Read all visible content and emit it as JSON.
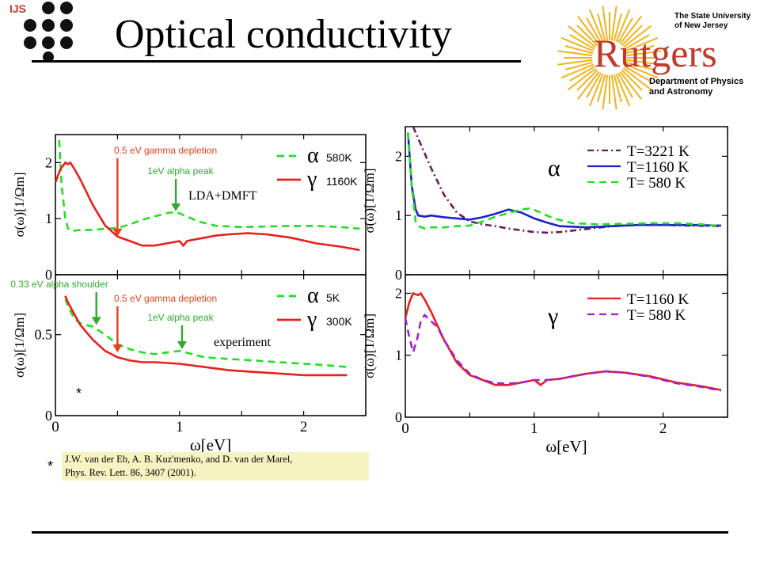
{
  "header": {
    "title": "Optical conductivity",
    "ijs_label": "IJS",
    "rutgers_state": "The State University of New Jersey",
    "rutgers_name": "Rutgers",
    "rutgers_dept": "Department of Physics and Astronomy"
  },
  "citation": {
    "line1": "J.W. van der Eb, A. B. Kuz'menko, and D. van der Marel,",
    "line2": "Phys. Rev. Lett. 86, 3407 (2001).",
    "marker": "*"
  },
  "colors": {
    "red": "#e8201c",
    "green": "#22dd22",
    "blue": "#1a22cc",
    "purple": "#6e1a5a",
    "violet": "#a020d0",
    "annotation": "#e8401c",
    "arrow_green": "#2faa2f"
  },
  "chart_data": [
    {
      "type": "line",
      "id": "left-top",
      "xlabel": "",
      "ylabel": "σ(ω)[1/Ωm]",
      "xlim": [
        0,
        2.5
      ],
      "ylim": [
        0,
        2.5
      ],
      "yticks": [
        "0",
        "1",
        "2"
      ],
      "inset_label": "LDA+DMFT",
      "legend": [
        {
          "symbol": "α",
          "text": "580K",
          "color": "green",
          "dash": true
        },
        {
          "symbol": "γ",
          "text": "1160K",
          "color": "red",
          "dash": false
        }
      ],
      "annotations": [
        {
          "text": "0.5 eV gamma depletion",
          "x": 0.5,
          "y": 0.68,
          "color": "annotation"
        },
        {
          "text": "1eV alpha peak",
          "x": 0.97,
          "y": 1.13,
          "color": "arrow_green"
        }
      ],
      "series": [
        {
          "color": "green",
          "dash": true,
          "x": [
            0.03,
            0.05,
            0.08,
            0.1,
            0.13,
            0.2,
            0.3,
            0.4,
            0.5,
            0.6,
            0.7,
            0.8,
            0.9,
            0.97,
            1.05,
            1.15,
            1.3,
            1.5,
            1.7,
            1.9,
            2.1,
            2.3,
            2.45
          ],
          "y": [
            2.4,
            1.6,
            1.0,
            0.83,
            0.78,
            0.8,
            0.8,
            0.82,
            0.83,
            0.9,
            0.98,
            1.04,
            1.1,
            1.12,
            1.05,
            0.95,
            0.87,
            0.85,
            0.86,
            0.87,
            0.87,
            0.85,
            0.82
          ]
        },
        {
          "color": "red",
          "dash": false,
          "x": [
            0.0,
            0.04,
            0.08,
            0.1,
            0.12,
            0.15,
            0.2,
            0.3,
            0.4,
            0.5,
            0.6,
            0.7,
            0.8,
            0.9,
            1.0,
            1.03,
            1.06,
            1.1,
            1.2,
            1.3,
            1.4,
            1.55,
            1.7,
            1.9,
            2.1,
            2.3,
            2.45
          ],
          "y": [
            1.65,
            1.88,
            2.0,
            1.97,
            2.0,
            1.9,
            1.7,
            1.25,
            0.88,
            0.68,
            0.6,
            0.52,
            0.52,
            0.56,
            0.6,
            0.52,
            0.6,
            0.62,
            0.66,
            0.7,
            0.72,
            0.74,
            0.72,
            0.66,
            0.56,
            0.5,
            0.44
          ]
        }
      ]
    },
    {
      "type": "line",
      "id": "left-bottom",
      "xlabel": "ω[eV]",
      "ylabel": "σ(ω)[1/Ωm]",
      "xlim": [
        0,
        2.5
      ],
      "ylim": [
        0,
        0.87
      ],
      "xticks": [
        "0",
        "1",
        "2"
      ],
      "yticks": [
        "0",
        "0.5"
      ],
      "inset_label": "experiment",
      "marker": "*",
      "legend": [
        {
          "symbol": "α",
          "text": "5K",
          "color": "green",
          "dash": true
        },
        {
          "symbol": "γ",
          "text": "300K",
          "color": "red",
          "dash": false
        }
      ],
      "annotations": [
        {
          "text": "0.33 eV alpha shoulder",
          "x": 0.33,
          "y": 0.56,
          "color": "arrow_green"
        },
        {
          "text": "0.5 eV gamma depletion",
          "x": 0.5,
          "y": 0.39,
          "color": "annotation"
        },
        {
          "text": "1eV alpha peak",
          "x": 1.02,
          "y": 0.41,
          "color": "arrow_green"
        }
      ],
      "series": [
        {
          "color": "green",
          "dash": true,
          "x": [
            0.08,
            0.1,
            0.15,
            0.2,
            0.3,
            0.4,
            0.5,
            0.6,
            0.7,
            0.8,
            0.9,
            1.0,
            1.1,
            1.2,
            1.4,
            1.6,
            1.8,
            2.0,
            2.2,
            2.35
          ],
          "y": [
            0.72,
            0.68,
            0.6,
            0.57,
            0.55,
            0.5,
            0.44,
            0.41,
            0.39,
            0.38,
            0.39,
            0.4,
            0.38,
            0.36,
            0.35,
            0.34,
            0.33,
            0.32,
            0.31,
            0.3
          ]
        },
        {
          "color": "red",
          "dash": false,
          "x": [
            0.08,
            0.1,
            0.15,
            0.2,
            0.3,
            0.4,
            0.5,
            0.6,
            0.7,
            0.8,
            1.0,
            1.2,
            1.4,
            1.6,
            1.8,
            2.0,
            2.2,
            2.35
          ],
          "y": [
            0.74,
            0.7,
            0.63,
            0.56,
            0.47,
            0.4,
            0.36,
            0.34,
            0.33,
            0.33,
            0.32,
            0.3,
            0.28,
            0.27,
            0.26,
            0.25,
            0.25,
            0.25
          ]
        }
      ]
    },
    {
      "type": "line",
      "id": "right-top",
      "xlabel": "",
      "ylabel": "σ(ω)[1/Ωm]",
      "xlim": [
        0,
        2.5
      ],
      "ylim": [
        0,
        2.5
      ],
      "yticks": [
        "0",
        "1",
        "2"
      ],
      "phase_label": "α",
      "legend": [
        {
          "text": "T=3221 K",
          "color": "purple",
          "dash": "dashdot"
        },
        {
          "text": "T=1160 K",
          "color": "blue",
          "dash": "solid"
        },
        {
          "text": "T=  580 K",
          "color": "green",
          "dash": "dash"
        }
      ],
      "series": [
        {
          "color": "purple",
          "dash": "dashdot",
          "x": [
            0.06,
            0.1,
            0.15,
            0.2,
            0.3,
            0.4,
            0.5,
            0.6,
            0.7,
            0.8,
            0.9,
            1.0,
            1.1,
            1.2,
            1.4,
            1.6,
            1.8,
            2.0,
            2.2,
            2.45
          ],
          "y": [
            2.5,
            2.3,
            2.05,
            1.8,
            1.35,
            1.05,
            0.9,
            0.85,
            0.82,
            0.78,
            0.75,
            0.72,
            0.71,
            0.72,
            0.77,
            0.82,
            0.84,
            0.84,
            0.83,
            0.82
          ]
        },
        {
          "color": "blue",
          "dash": "solid",
          "x": [
            0.02,
            0.05,
            0.08,
            0.1,
            0.15,
            0.2,
            0.3,
            0.4,
            0.5,
            0.6,
            0.7,
            0.8,
            0.9,
            1.0,
            1.1,
            1.2,
            1.4,
            1.6,
            1.8,
            2.0,
            2.2,
            2.45
          ],
          "y": [
            2.4,
            1.5,
            1.1,
            1.0,
            0.98,
            1.0,
            0.97,
            0.95,
            0.93,
            0.97,
            1.03,
            1.1,
            1.05,
            0.95,
            0.88,
            0.82,
            0.8,
            0.82,
            0.84,
            0.84,
            0.84,
            0.83
          ]
        },
        {
          "color": "green",
          "dash": "dash",
          "x": [
            0.02,
            0.05,
            0.08,
            0.1,
            0.15,
            0.2,
            0.3,
            0.4,
            0.5,
            0.6,
            0.7,
            0.8,
            0.9,
            0.97,
            1.05,
            1.15,
            1.3,
            1.5,
            1.7,
            1.9,
            2.1,
            2.3,
            2.45
          ],
          "y": [
            2.4,
            1.5,
            0.9,
            0.82,
            0.78,
            0.8,
            0.8,
            0.82,
            0.83,
            0.9,
            0.98,
            1.04,
            1.1,
            1.12,
            1.05,
            0.95,
            0.87,
            0.85,
            0.86,
            0.87,
            0.87,
            0.85,
            0.82
          ]
        }
      ]
    },
    {
      "type": "line",
      "id": "right-bottom",
      "xlabel": "ω[eV]",
      "ylabel": "σ(ω)[1/Ωm]",
      "xlim": [
        0,
        2.5
      ],
      "ylim": [
        0,
        2.3
      ],
      "xticks": [
        "0",
        "1",
        "2"
      ],
      "yticks": [
        "0",
        "1",
        "2"
      ],
      "phase_label": "γ",
      "legend": [
        {
          "text": "T=1160 K",
          "color": "red",
          "dash": "solid"
        },
        {
          "text": "T=  580 K",
          "color": "violet",
          "dash": "dash"
        }
      ],
      "series": [
        {
          "color": "red",
          "dash": "solid",
          "x": [
            0.0,
            0.03,
            0.06,
            0.1,
            0.12,
            0.15,
            0.2,
            0.3,
            0.4,
            0.5,
            0.6,
            0.7,
            0.8,
            0.9,
            1.0,
            1.05,
            1.1,
            1.2,
            1.3,
            1.4,
            1.55,
            1.7,
            1.9,
            2.1,
            2.3,
            2.45
          ],
          "y": [
            1.6,
            1.85,
            2.0,
            1.97,
            2.0,
            1.9,
            1.7,
            1.25,
            0.88,
            0.68,
            0.6,
            0.52,
            0.52,
            0.56,
            0.6,
            0.52,
            0.6,
            0.62,
            0.66,
            0.7,
            0.74,
            0.72,
            0.66,
            0.56,
            0.5,
            0.44
          ]
        },
        {
          "color": "violet",
          "dash": "dash",
          "x": [
            0.0,
            0.03,
            0.06,
            0.09,
            0.12,
            0.15,
            0.2,
            0.25,
            0.3,
            0.4,
            0.5,
            0.6,
            0.7,
            0.8,
            0.9,
            1.0,
            1.1,
            1.2,
            1.3,
            1.4,
            1.55,
            1.7,
            1.9,
            2.1,
            2.3,
            2.45
          ],
          "y": [
            1.6,
            1.3,
            1.05,
            1.25,
            1.55,
            1.65,
            1.55,
            1.45,
            1.25,
            0.92,
            0.7,
            0.6,
            0.55,
            0.54,
            0.56,
            0.6,
            0.6,
            0.62,
            0.66,
            0.7,
            0.74,
            0.72,
            0.65,
            0.55,
            0.49,
            0.43
          ]
        }
      ]
    }
  ]
}
